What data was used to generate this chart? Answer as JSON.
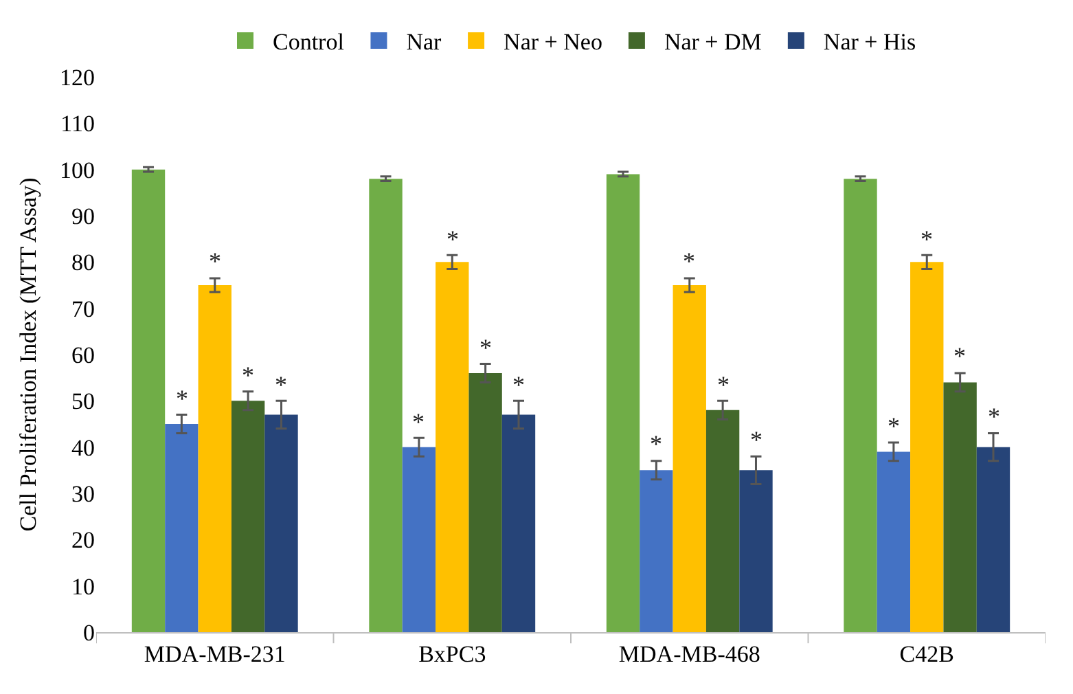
{
  "chart_data": {
    "type": "bar",
    "ylabel": "Cell Proliferation Index (MTT Assay)",
    "categories": [
      "MDA-MB-231",
      "BxPC3",
      "MDA-MB-468",
      "C42B"
    ],
    "series": [
      {
        "name": "Control",
        "color": "#70ad47",
        "values": [
          100,
          98,
          99,
          98
        ],
        "errors": [
          0.5,
          0.5,
          0.5,
          0.5
        ]
      },
      {
        "name": "Nar",
        "color": "#4472c4",
        "values": [
          45,
          40,
          35,
          39
        ],
        "errors": [
          2,
          2,
          2,
          2
        ],
        "value_labels": [
          "*",
          "*",
          "*",
          "*"
        ]
      },
      {
        "name": "Nar + Neo",
        "color": "#ffc000",
        "values": [
          75,
          80,
          75,
          80
        ],
        "errors": [
          1.5,
          1.5,
          1.5,
          1.5
        ],
        "value_labels": [
          "*",
          "*",
          "*",
          "*"
        ]
      },
      {
        "name": "Nar + DM",
        "color": "#43682b",
        "values": [
          50,
          56,
          48,
          54
        ],
        "errors": [
          2,
          2,
          2,
          2
        ],
        "value_labels": [
          "*",
          "*",
          "*",
          "*"
        ]
      },
      {
        "name": "Nar + His",
        "color": "#264478",
        "values": [
          47,
          47,
          35,
          40
        ],
        "errors": [
          3,
          3,
          3,
          3
        ],
        "value_labels": [
          "*",
          "*",
          "*",
          "*"
        ]
      }
    ],
    "ylim": [
      0,
      120
    ],
    "yticks": [
      0,
      10,
      20,
      30,
      40,
      50,
      60,
      70,
      80,
      90,
      100,
      110,
      120
    ],
    "grid": false,
    "legend": "top"
  }
}
